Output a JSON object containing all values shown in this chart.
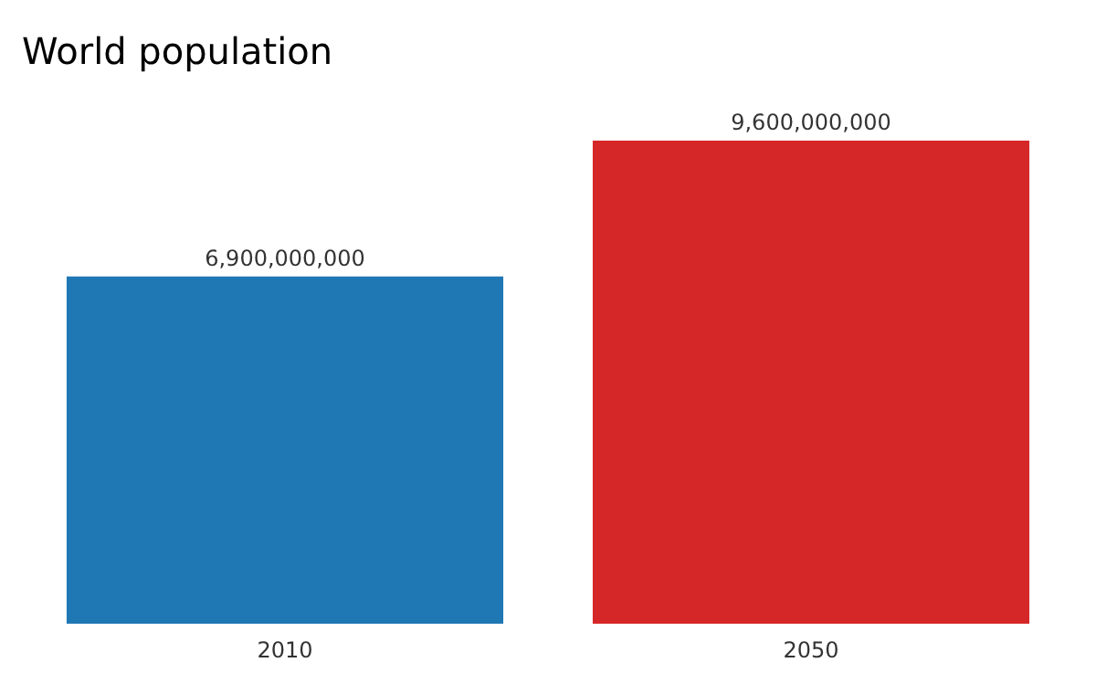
{
  "chart_data": {
    "type": "bar",
    "title": "World population",
    "categories": [
      "2010",
      "2050"
    ],
    "values": [
      6900000000,
      9600000000
    ],
    "colors": [
      "#1f77b4",
      "#d62728"
    ],
    "value_labels": [
      "6,900,000,000",
      "9,600,000,000"
    ],
    "grid": false,
    "legend": false
  }
}
